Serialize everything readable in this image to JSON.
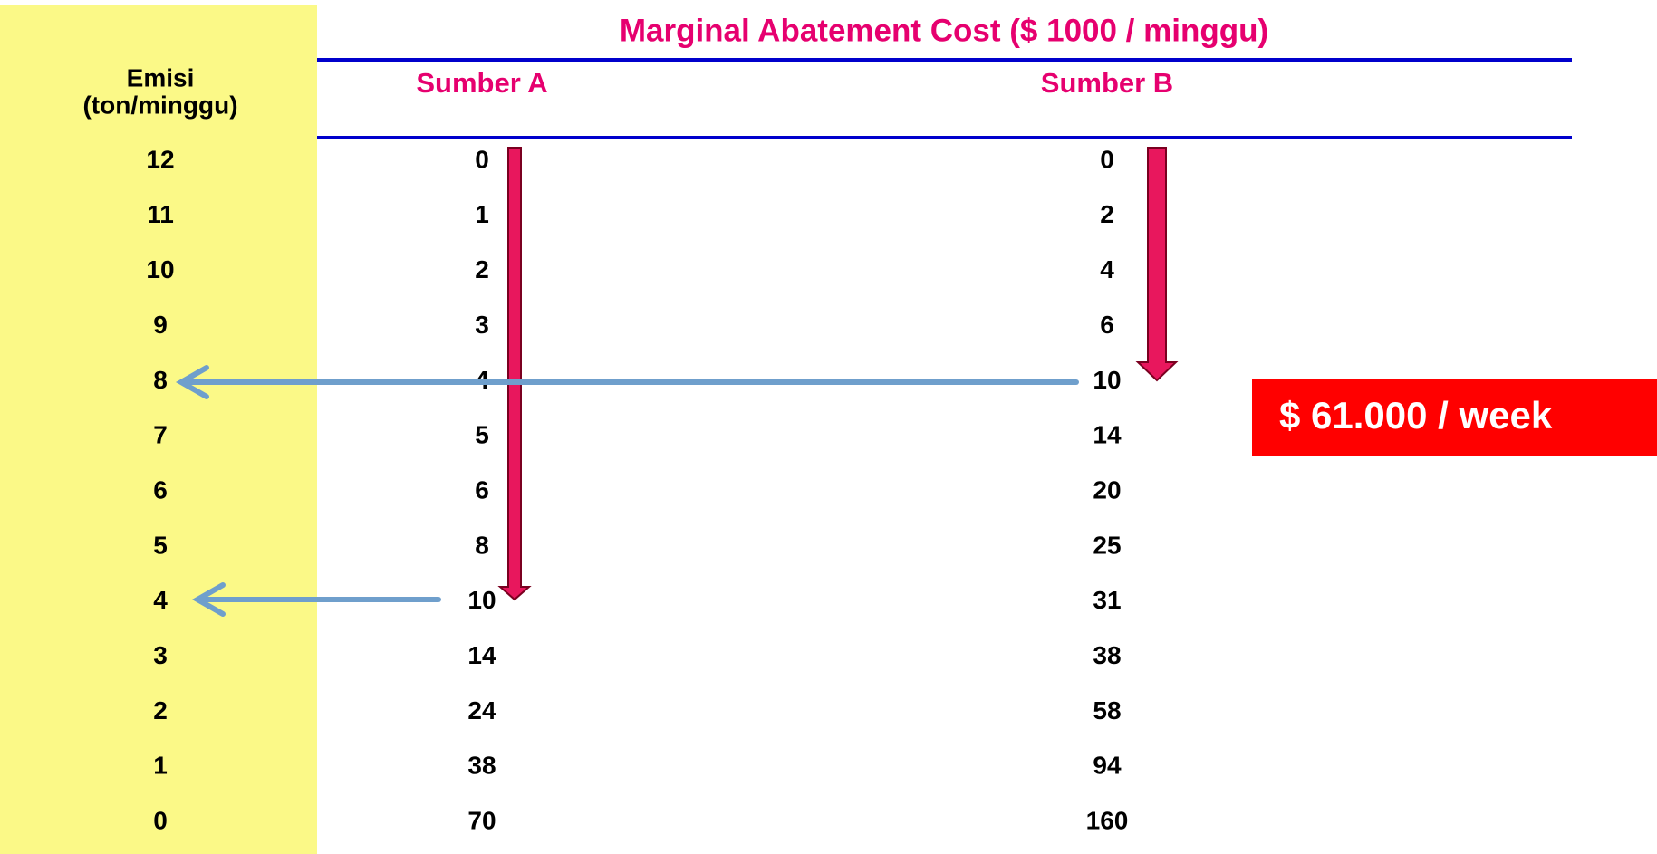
{
  "title": "Marginal Abatement Cost ($ 1000 / minggu)",
  "table": {
    "header": {
      "emisi": [
        "Emisi",
        "(ton/minggu)"
      ],
      "sumber_a": "Sumber A",
      "sumber_b": "Sumber B"
    },
    "rows": [
      [
        "12",
        "0",
        "0"
      ],
      [
        "11",
        "1",
        "2"
      ],
      [
        "10",
        "2",
        "4"
      ],
      [
        "9",
        "3",
        "6"
      ],
      [
        "8",
        "4",
        "10"
      ],
      [
        "7",
        "5",
        "14"
      ],
      [
        "6",
        "6",
        "20"
      ],
      [
        "5",
        "8",
        "25"
      ],
      [
        "4",
        "10",
        "31"
      ],
      [
        "3",
        "14",
        "38"
      ],
      [
        "2",
        "24",
        "58"
      ],
      [
        "1",
        "38",
        "94"
      ],
      [
        "0",
        "70",
        "160"
      ]
    ]
  },
  "callout": "$ 61.000 / week"
}
